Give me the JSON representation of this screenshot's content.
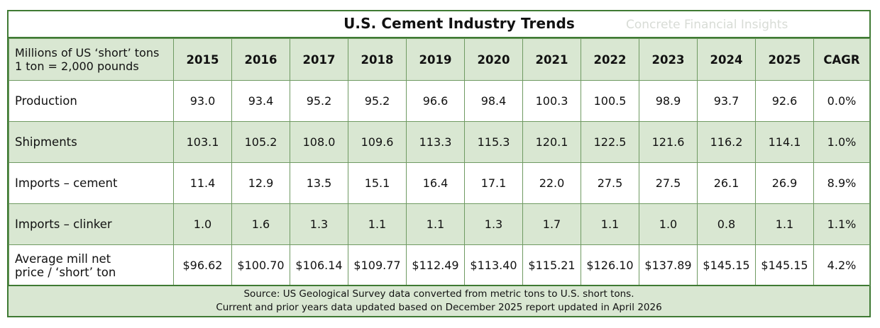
{
  "title": "U.S. Cement Industry Trends",
  "watermark": "Concrete Financial Insights",
  "colors": {
    "border": "#3f7a33",
    "shade": "#d9e7d2"
  },
  "chart_data": {
    "type": "table",
    "header_label_line1": "Millions of US ‘short’ tons",
    "header_label_line2": "1 ton = 2,000 pounds",
    "columns": [
      "2015",
      "2016",
      "2017",
      "2018",
      "2019",
      "2020",
      "2021",
      "2022",
      "2023",
      "2024",
      "2025",
      "CAGR"
    ],
    "rows": [
      {
        "label": [
          "Production"
        ],
        "shaded": false,
        "values": [
          "93.0",
          "93.4",
          "95.2",
          "95.2",
          "96.6",
          "98.4",
          "100.3",
          "100.5",
          "98.9",
          "93.7",
          "92.6",
          "0.0%"
        ]
      },
      {
        "label": [
          "Shipments"
        ],
        "shaded": true,
        "values": [
          "103.1",
          "105.2",
          "108.0",
          "109.6",
          "113.3",
          "115.3",
          "120.1",
          "122.5",
          "121.6",
          "116.2",
          "114.1",
          "1.0%"
        ]
      },
      {
        "label": [
          "Imports – cement"
        ],
        "shaded": false,
        "values": [
          "11.4",
          "12.9",
          "13.5",
          "15.1",
          "16.4",
          "17.1",
          "22.0",
          "27.5",
          "27.5",
          "26.1",
          "26.9",
          "8.9%"
        ]
      },
      {
        "label": [
          "Imports – clinker"
        ],
        "shaded": true,
        "values": [
          "1.0",
          "1.6",
          "1.3",
          "1.1",
          "1.1",
          "1.3",
          "1.7",
          "1.1",
          "1.0",
          "0.8",
          "1.1",
          "1.1%"
        ]
      },
      {
        "label": [
          "Average mill net",
          "price / ‘short’ ton"
        ],
        "shaded": false,
        "values": [
          "$96.62",
          "$100.70",
          "$106.14",
          "$109.77",
          "$112.49",
          "$113.40",
          "$115.21",
          "$126.10",
          "$137.89",
          "$145.15",
          "$145.15",
          "4.2%"
        ]
      }
    ]
  },
  "footer": {
    "line1": "Source: US Geological Survey data converted from metric tons to U.S. short tons.",
    "line2": "Current and prior years data updated based on December 2025 report updated in April 2026"
  }
}
